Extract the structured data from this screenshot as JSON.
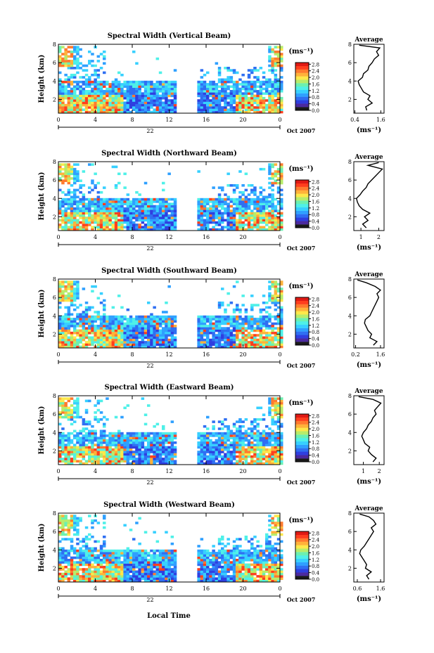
{
  "figure": {
    "bottom_xlabel": "Local Time",
    "date_label": "Oct 2007",
    "day_label": "22",
    "colorbar_unit": "(ms⁻¹)",
    "average_title": "Average",
    "average_xlabel": "(ms⁻¹)"
  },
  "colorscale": {
    "colors": [
      "#1a1a1a",
      "#4b2aa0",
      "#2f3fe0",
      "#2f6ff2",
      "#2fa0ff",
      "#37d0ff",
      "#4ff0e8",
      "#6cf0b0",
      "#b8ec6a",
      "#fde84a",
      "#ffb23a",
      "#ff7a2e",
      "#ff3e1e",
      "#e01a14"
    ]
  },
  "chart_data": [
    {
      "type": "heatmap",
      "title": "Spectral Width (Vertical Beam)",
      "ylabel": "Height (km)",
      "yticks": [
        "2",
        "4",
        "6",
        "8"
      ],
      "ylim": [
        0.5,
        8
      ],
      "xticks": [
        "0",
        "4",
        "8",
        "12",
        "16",
        "20",
        "0"
      ],
      "xlim": [
        0,
        24
      ],
      "data_gap": [
        12.8,
        14.9
      ],
      "colorbar_ticks": [
        "0.0",
        "0.4",
        "0.8",
        "1.2",
        "1.6",
        "2.0",
        "2.4",
        "2.8"
      ],
      "colorbar_range": [
        0,
        2.9
      ],
      "average": {
        "xticks": [
          "0.4",
          "1.6"
        ],
        "xlim": [
          0.35,
          1.75
        ],
        "y": [
          0.8,
          1.2,
          1.6,
          2.0,
          2.4,
          2.8,
          3.2,
          3.6,
          4.0,
          4.4,
          4.8,
          5.2,
          5.6,
          6.0,
          6.4,
          6.8,
          7.2,
          7.6,
          7.9
        ],
        "x": [
          0.95,
          0.9,
          1.2,
          1.0,
          1.1,
          0.8,
          0.7,
          0.6,
          0.55,
          0.75,
          0.8,
          1.0,
          1.05,
          1.2,
          1.3,
          1.5,
          1.4,
          1.55,
          0.6
        ]
      }
    },
    {
      "type": "heatmap",
      "title": "Spectral Width (Northward Beam)",
      "ylabel": "Height (km)",
      "yticks": [
        "2",
        "4",
        "6",
        "8"
      ],
      "ylim": [
        0.5,
        8
      ],
      "xticks": [
        "0",
        "4",
        "8",
        "12",
        "16",
        "20",
        "0"
      ],
      "xlim": [
        0,
        24
      ],
      "data_gap": [
        12.8,
        14.9
      ],
      "colorbar_ticks": [
        "0.0",
        "0.4",
        "0.8",
        "1.2",
        "1.6",
        "2.0",
        "2.4",
        "2.8"
      ],
      "colorbar_range": [
        0,
        2.9
      ],
      "average": {
        "xticks": [
          "1",
          "2"
        ],
        "xlim": [
          0.6,
          2.3
        ],
        "y": [
          0.8,
          1.2,
          1.6,
          2.0,
          2.4,
          2.8,
          3.2,
          3.6,
          4.0,
          4.4,
          4.8,
          5.2,
          5.6,
          6.0,
          6.4,
          6.8,
          7.2,
          7.6,
          7.9
        ],
        "x": [
          1.3,
          1.1,
          1.4,
          1.2,
          1.5,
          1.1,
          0.9,
          0.8,
          0.75,
          0.95,
          1.1,
          1.3,
          1.4,
          1.6,
          1.8,
          2.0,
          2.2,
          1.4,
          2.0
        ]
      }
    },
    {
      "type": "heatmap",
      "title": "Spectral Width (Southward Beam)",
      "ylabel": "Height (km)",
      "yticks": [
        "2",
        "4",
        "6",
        "8"
      ],
      "ylim": [
        0.5,
        8
      ],
      "xticks": [
        "0",
        "4",
        "8",
        "12",
        "16",
        "20",
        "0"
      ],
      "xlim": [
        0,
        24
      ],
      "data_gap": [
        12.8,
        14.9
      ],
      "colorbar_ticks": [
        "0.0",
        "0.4",
        "0.8",
        "1.2",
        "1.6",
        "2.0",
        "2.4",
        "2.8"
      ],
      "colorbar_range": [
        0,
        2.9
      ],
      "average": {
        "xticks": [
          "0.2",
          "1.6"
        ],
        "xlim": [
          0.1,
          1.8
        ],
        "y": [
          0.8,
          1.2,
          1.6,
          2.0,
          2.4,
          2.8,
          3.2,
          3.6,
          4.0,
          4.4,
          4.8,
          5.2,
          5.6,
          6.0,
          6.4,
          6.8,
          7.2,
          7.6,
          7.9
        ],
        "x": [
          1.2,
          1.4,
          1.0,
          1.1,
          0.9,
          0.8,
          0.7,
          0.75,
          1.0,
          1.1,
          1.2,
          1.3,
          1.4,
          1.5,
          1.4,
          1.6,
          1.3,
          0.8,
          0.3
        ]
      }
    },
    {
      "type": "heatmap",
      "title": "Spectral Width (Eastward Beam)",
      "ylabel": "Height (km)",
      "yticks": [
        "2",
        "4",
        "6",
        "8"
      ],
      "ylim": [
        0.5,
        8
      ],
      "xticks": [
        "0",
        "4",
        "8",
        "12",
        "16",
        "20",
        "0"
      ],
      "xlim": [
        0,
        24
      ],
      "data_gap": [
        12.8,
        14.9
      ],
      "colorbar_ticks": [
        "0.0",
        "0.4",
        "0.8",
        "1.2",
        "1.6",
        "2.0",
        "2.4",
        "2.8"
      ],
      "colorbar_range": [
        0,
        2.9
      ],
      "average": {
        "xticks": [
          "1",
          "2"
        ],
        "xlim": [
          0.4,
          2.3
        ],
        "y": [
          0.8,
          1.2,
          1.6,
          2.0,
          2.4,
          2.8,
          3.2,
          3.6,
          4.0,
          4.4,
          4.8,
          5.2,
          5.6,
          6.0,
          6.4,
          6.8,
          7.2,
          7.6,
          7.9
        ],
        "x": [
          1.6,
          1.8,
          1.5,
          1.3,
          1.4,
          1.1,
          1.0,
          0.9,
          1.0,
          1.2,
          1.3,
          1.5,
          1.6,
          1.8,
          1.7,
          1.9,
          2.1,
          1.6,
          0.7
        ]
      }
    },
    {
      "type": "heatmap",
      "title": "Spectral Width (Westward Beam)",
      "ylabel": "Height (km)",
      "yticks": [
        "2",
        "4",
        "6",
        "8"
      ],
      "ylim": [
        0.5,
        8
      ],
      "xticks": [
        "0",
        "4",
        "8",
        "12",
        "16",
        "20",
        "0"
      ],
      "xlim": [
        0,
        24
      ],
      "data_gap": [
        12.8,
        14.9
      ],
      "colorbar_ticks": [
        "0.0",
        "0.4",
        "0.8",
        "1.2",
        "1.6",
        "2.0",
        "2.4",
        "2.8"
      ],
      "colorbar_range": [
        0,
        2.9
      ],
      "average": {
        "xticks": [
          "0.6",
          "1.6"
        ],
        "xlim": [
          0.45,
          1.75
        ],
        "y": [
          0.8,
          1.2,
          1.6,
          2.0,
          2.4,
          2.8,
          3.2,
          3.6,
          4.0,
          4.4,
          4.8,
          5.2,
          5.6,
          6.0,
          6.4,
          6.8,
          7.2,
          7.6,
          7.9
        ],
        "x": [
          1.1,
          1.0,
          1.2,
          0.95,
          1.0,
          0.9,
          0.8,
          0.7,
          0.75,
          0.9,
          1.0,
          1.1,
          1.2,
          1.3,
          1.2,
          1.4,
          1.3,
          1.1,
          0.7
        ]
      }
    }
  ]
}
